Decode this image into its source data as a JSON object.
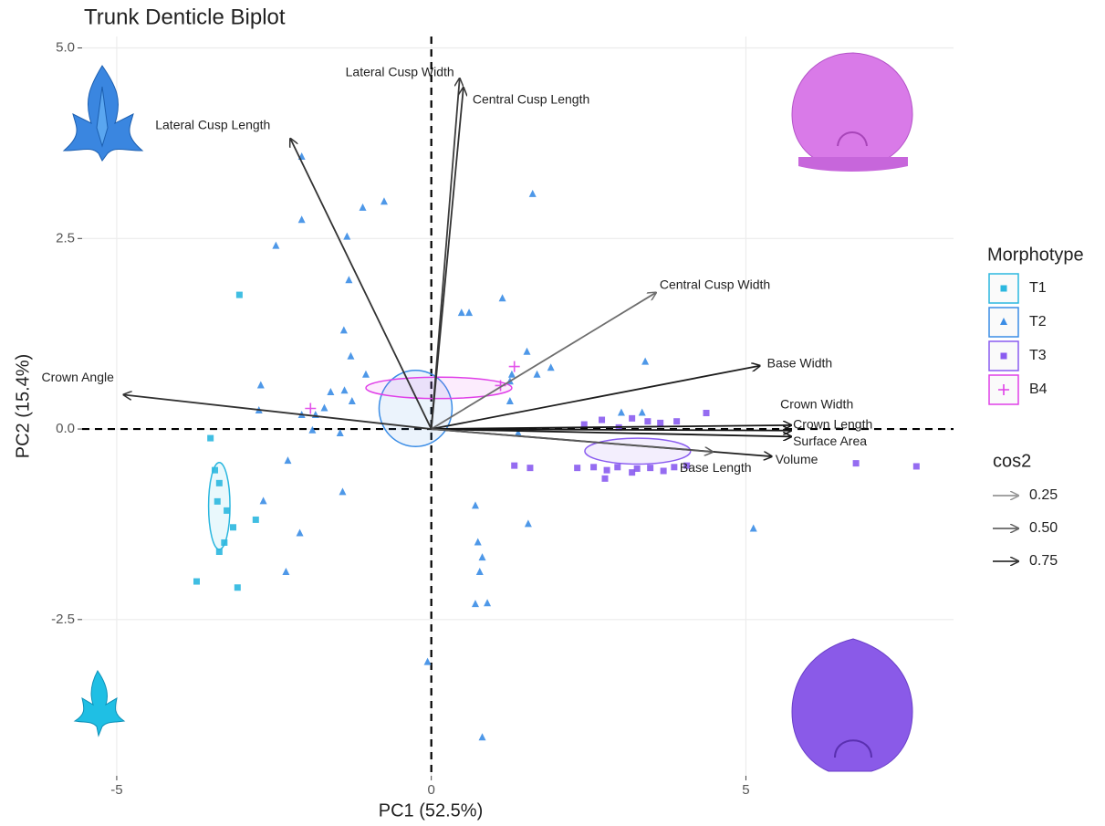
{
  "chart_data": {
    "type": "biplot",
    "title": "Trunk Denticle Biplot",
    "x_label": "PC1 (52.5%)",
    "y_label": "PC2 (15.4%)",
    "xlim": [
      -5.55,
      8.3
    ],
    "ylim": [
      -4.55,
      5.15
    ],
    "xticks": [
      -5,
      0,
      5
    ],
    "yticks": [
      -2.5,
      {
        "value": 0,
        "label": "0.0"
      },
      2.5,
      {
        "value": 5,
        "label": "5.0"
      }
    ],
    "grid": true,
    "legend_title": "Morphotype",
    "series": [
      {
        "name": "T1",
        "color": "#2bb7df",
        "marker": "square",
        "x": [
          -3.05,
          -3.51,
          -3.44,
          -3.37,
          -3.4,
          -3.25,
          -3.29,
          -3.15,
          -3.37,
          -3.73,
          -3.08,
          -2.79
        ],
        "y": [
          1.76,
          -0.12,
          -0.54,
          -0.71,
          -0.95,
          -1.07,
          -1.49,
          -1.29,
          -1.61,
          -2.0,
          -2.08,
          -1.19
        ],
        "ellipse": {
          "cx": -3.37,
          "cy": -1.01,
          "rx": 0.17,
          "ry": 0.57
        }
      },
      {
        "name": "T2",
        "color": "#3b8de6",
        "marker": "triangle",
        "x": [
          -2.06,
          -2.06,
          -2.47,
          -1.09,
          -0.75,
          -1.34,
          -1.31,
          0.48,
          0.6,
          1.13,
          1.61,
          -1.39,
          -1.28,
          -1.04,
          -1.38,
          -1.26,
          -1.6,
          -1.7,
          -1.84,
          -2.71,
          -2.74,
          -2.06,
          -1.45,
          -1.89,
          -2.28,
          -1.41,
          -2.67,
          -2.09,
          -2.31,
          1.28,
          1.52,
          1.25,
          1.25,
          1.38,
          1.9,
          1.68,
          3.4,
          3.02,
          3.35,
          0.7,
          0.74,
          0.81,
          0.77,
          0.7,
          0.89,
          1.54,
          5.12,
          -0.06,
          0.81
        ],
        "y": [
          3.57,
          2.74,
          2.4,
          2.9,
          2.98,
          2.52,
          1.95,
          1.52,
          1.52,
          1.71,
          3.08,
          1.29,
          0.95,
          0.71,
          0.5,
          0.36,
          0.48,
          0.27,
          0.18,
          0.57,
          0.24,
          0.18,
          -0.06,
          -0.02,
          -0.42,
          -0.83,
          -0.95,
          -1.37,
          -1.88,
          0.71,
          1.01,
          0.62,
          0.36,
          -0.06,
          0.8,
          0.71,
          0.88,
          0.21,
          0.21,
          -1.01,
          -1.49,
          -1.69,
          -1.88,
          -2.3,
          -2.29,
          -1.25,
          -1.31,
          -3.06,
          -4.05
        ],
        "ellipse": {
          "cx": -0.25,
          "cy": 0.27,
          "rx": 0.58,
          "ry": 0.5
        }
      },
      {
        "name": "T3",
        "color": "#8a5cf0",
        "marker": "square",
        "x": [
          2.43,
          2.71,
          2.98,
          3.19,
          3.44,
          3.64,
          3.9,
          4.37,
          1.32,
          1.57,
          2.32,
          2.58,
          2.79,
          2.76,
          2.96,
          3.19,
          3.27,
          3.48,
          3.69,
          3.86,
          4.06,
          6.75,
          7.71
        ],
        "y": [
          0.06,
          0.12,
          0.02,
          0.14,
          0.1,
          0.08,
          0.1,
          0.21,
          -0.48,
          -0.51,
          -0.51,
          -0.5,
          -0.54,
          -0.65,
          -0.5,
          -0.57,
          -0.52,
          -0.51,
          -0.55,
          -0.5,
          -0.48,
          -0.45,
          -0.49
        ],
        "ellipse": {
          "cx": 3.28,
          "cy": -0.29,
          "rx": 0.84,
          "ry": 0.17
        }
      },
      {
        "name": "B4",
        "color": "#e040e8",
        "marker": "plus",
        "x": [
          -1.92,
          1.1,
          1.32
        ],
        "y": [
          0.27,
          0.57,
          0.82
        ],
        "ellipse": {
          "cx": 0.12,
          "cy": 0.54,
          "rx": 1.16,
          "ry": 0.14
        }
      }
    ],
    "arrows": [
      {
        "name": "Lateral Cusp Width",
        "x": 0.45,
        "y": 4.6,
        "cos2": 0.7
      },
      {
        "name": "Central Cusp Length",
        "x": 0.51,
        "y": 4.48,
        "cos2": 0.75
      },
      {
        "name": "Lateral Cusp Length",
        "x": -2.24,
        "y": 3.81,
        "cos2": 0.75
      },
      {
        "name": "Central Cusp Width",
        "x": 3.57,
        "y": 1.79,
        "cos2": 0.45
      },
      {
        "name": "Base Width",
        "x": 5.22,
        "y": 0.83,
        "cos2": 0.85
      },
      {
        "name": "Crown Width",
        "x": 5.72,
        "y": 0.05,
        "cos2": 0.9
      },
      {
        "name": "Crown Length",
        "x": 5.72,
        "y": -0.02,
        "cos2": 0.9
      },
      {
        "name": "Surface Area",
        "x": 5.72,
        "y": -0.1,
        "cos2": 0.9
      },
      {
        "name": "Volume",
        "x": 5.41,
        "y": -0.36,
        "cos2": 0.85
      },
      {
        "name": "Base Length",
        "x": 4.47,
        "y": -0.3,
        "cos2": 0.55
      },
      {
        "name": "Crown Angle",
        "x": -4.89,
        "y": 0.45,
        "cos2": 0.75
      }
    ],
    "cos2_legend": {
      "title": "cos2",
      "values": [
        0.25,
        {
          "value": 0.5,
          "label": "0.50"
        },
        0.75
      ]
    }
  }
}
